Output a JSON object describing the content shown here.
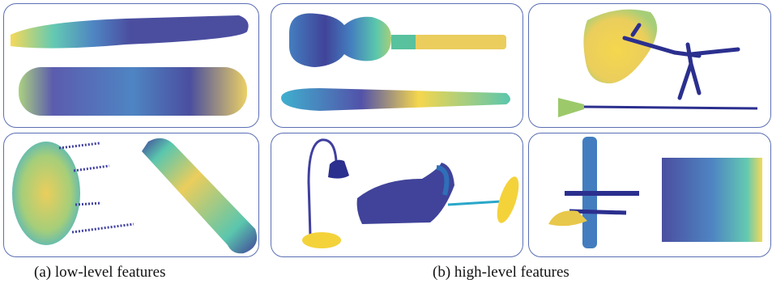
{
  "figure": {
    "caption_a": "(a)  low-level features",
    "caption_b": "(b)  high-level features"
  },
  "colormap": [
    "#2b2f8e",
    "#3f3fa0",
    "#2f6fb8",
    "#2aa7c9",
    "#48c0a4",
    "#9cc96a",
    "#e8c84a",
    "#f4d23a"
  ],
  "panels": [
    {
      "id": "a-top",
      "content": "two-elongated-point-clouds"
    },
    {
      "id": "a-bottom",
      "content": "chair-like-point-cloud"
    },
    {
      "id": "b-top-left",
      "content": "guitar-point-cloud"
    },
    {
      "id": "b-top-right",
      "content": "plane-and-lamp-point-cloud"
    },
    {
      "id": "b-bottom-left",
      "content": "desk-lamp-point-cloud"
    },
    {
      "id": "b-bottom-right",
      "content": "airplane-and-box-point-cloud"
    }
  ]
}
